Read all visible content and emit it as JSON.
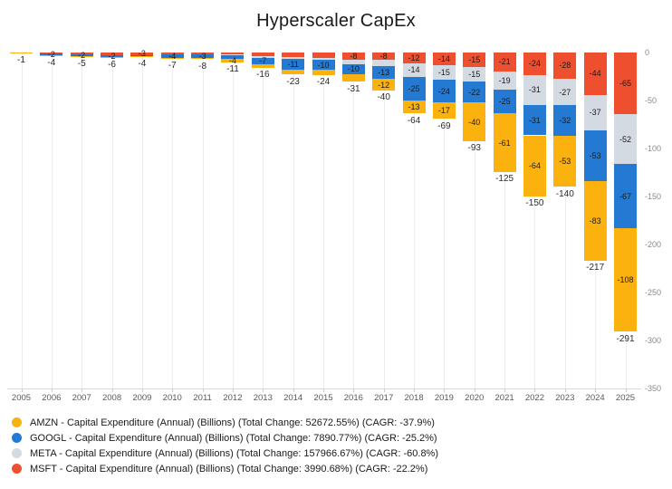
{
  "chart_data": {
    "type": "bar",
    "stacked": true,
    "orientation": "vertical-negative",
    "title": "Hyperscaler CapEx",
    "grid": "vertical-only",
    "legend_position": "bottom-left",
    "categories": [
      "2005",
      "2006",
      "2007",
      "2008",
      "2009",
      "2010",
      "2011",
      "2012",
      "2013",
      "2014",
      "2015",
      "2016",
      "2017",
      "2018",
      "2019",
      "2020",
      "2021",
      "2022",
      "2023",
      "2024",
      "2025"
    ],
    "stack_order": [
      "MSFT",
      "META",
      "GOOGL",
      "AMZN"
    ],
    "series": [
      {
        "name": "AMZN",
        "color": "#FBB10E",
        "legend_label": "AMZN - Capital Expenditure (Annual) (Billions) (Total Change: 52672.55%) (CAGR: -37.9%)",
        "values": [
          -1.0,
          -0.2,
          -0.22,
          -0.33,
          -0.37,
          -0.98,
          -1.8,
          -3.8,
          -3.4,
          -4.9,
          -5.4,
          -7.8,
          -12,
          -13.4,
          -16.9,
          -40.1,
          -61.1,
          -63.6,
          -52.7,
          -83,
          -107.8
        ],
        "bar_labels": [
          "",
          "",
          "",
          "",
          "",
          "",
          "",
          "-4",
          "",
          "",
          "",
          "",
          "-12",
          "-13",
          "-17",
          "-40",
          "-61",
          "-64",
          "-53",
          "-83",
          "-108"
        ]
      },
      {
        "name": "GOOGL",
        "color": "#2479D2",
        "legend_label": "GOOGL - Capital Expenditure (Annual) (Billions) (Total Change: 7890.77%) (CAGR: -25.2%)",
        "values": [
          0,
          -1.9,
          -2.4,
          -2.4,
          -0.8,
          -4,
          -3.4,
          -3.3,
          -7.4,
          -11,
          -9.9,
          -10.2,
          -13.2,
          -25.1,
          -23.5,
          -22.3,
          -24.6,
          -31.5,
          -32.3,
          -52.5,
          -67
        ],
        "bar_labels": [
          "",
          "-2",
          "-2",
          "-2",
          "",
          "-4",
          "-3",
          "",
          "-7",
          "-11",
          "-10",
          "-10",
          "-13",
          "-25",
          "-24",
          "-22",
          "-25",
          "-31",
          "-32",
          "-53",
          "-67"
        ]
      },
      {
        "name": "META",
        "color": "#D4DAE2",
        "legend_label": "META - Capital Expenditure (Annual) (Billions) (Total Change: 157966.67%) (CAGR: -60.8%)",
        "values": [
          0,
          0,
          0,
          0,
          0,
          0,
          0,
          -1.2,
          -1.4,
          -1.8,
          -2.5,
          -4.5,
          -6.7,
          -13.9,
          -15.1,
          -15.1,
          -18.6,
          -31.4,
          -27.3,
          -37.3,
          -52
        ],
        "bar_labels": [
          "",
          "",
          "",
          "",
          "",
          "",
          "",
          "",
          "",
          "",
          "",
          "",
          "",
          "-14",
          "-15",
          "-15",
          "-19",
          "-31",
          "-27",
          "-37",
          "-52"
        ]
      },
      {
        "name": "MSFT",
        "color": "#EE4F2E",
        "legend_label": "MSFT - Capital Expenditure (Annual) (Billions) (Total Change: 3990.68%) (CAGR: -22.2%)",
        "values": [
          0,
          -1.6,
          -2.3,
          -3.2,
          -3.1,
          -1.9,
          -2.3,
          -2.3,
          -4.3,
          -5.5,
          -5.9,
          -8.3,
          -8.1,
          -11.6,
          -13.9,
          -15.4,
          -20.6,
          -23.9,
          -28.1,
          -44.5,
          -64.6
        ],
        "bar_labels": [
          "",
          "",
          "",
          "",
          "-3",
          "",
          "",
          "",
          "",
          "",
          "",
          "-8",
          "-8",
          "-12",
          "-14",
          "-15",
          "-21",
          "-24",
          "-28",
          "-44",
          "-65"
        ]
      }
    ],
    "bar_totals": [
      "-1",
      "-4",
      "-5",
      "-6",
      "-4",
      "-7",
      "-8",
      "-11",
      "-16",
      "-23",
      "-24",
      "-31",
      "-40",
      "-64",
      "-69",
      "-93",
      "-125",
      "-150",
      "-140",
      "-217",
      "-291"
    ],
    "y_axis": {
      "tick_labels": [
        "0",
        "-50",
        "-100",
        "-150",
        "-200",
        "-250",
        "-300",
        "-350"
      ],
      "min": -350,
      "max": 0
    }
  }
}
